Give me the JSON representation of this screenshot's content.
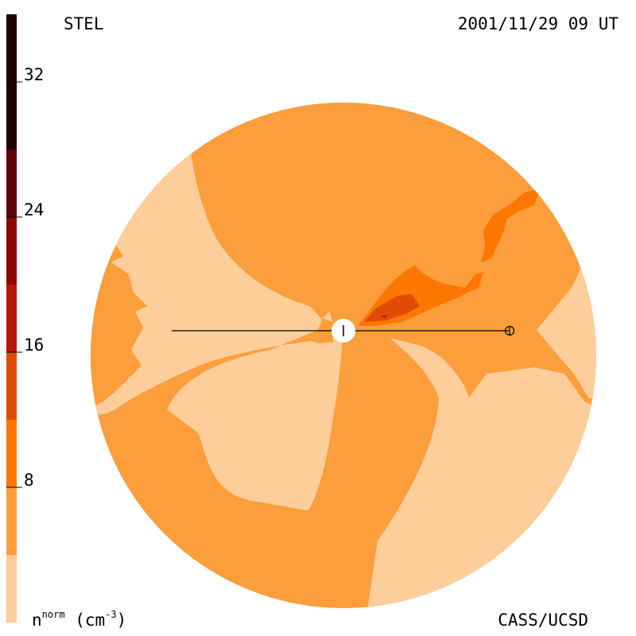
{
  "header": {
    "title": "STEL",
    "timestamp": "2001/11/29 09 UT"
  },
  "footer": {
    "credit": "CASS/UCSD",
    "unit_symbol": "n",
    "unit_superscript": "norm",
    "unit_text": "(cm",
    "unit_exponent": "-3",
    "unit_close": ")"
  },
  "colors": {
    "level_1": "#fdcd9a",
    "level_2": "#fb9e3b",
    "level_3": "#fb7700",
    "level_4": "#e04c06",
    "level_5": "#b81709",
    "level_6": "#8d0505",
    "level_7": "#5e0404",
    "level_8": "#200000",
    "line": "#000000"
  },
  "colorbar": {
    "min": 0,
    "max": 36,
    "ticks": [
      "8",
      "16",
      "24",
      "32"
    ],
    "tick_values": [
      8,
      16,
      24,
      32
    ],
    "levels": [
      0,
      4,
      8,
      12,
      16,
      20,
      24,
      28,
      36
    ]
  },
  "markers": {
    "sun_icon": "sun-icon",
    "earth_icon": "earth-icon"
  }
}
